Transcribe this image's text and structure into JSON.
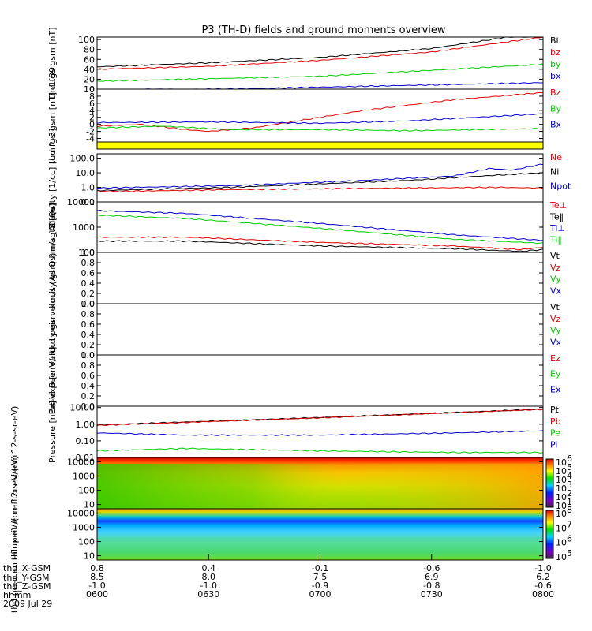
{
  "title": "P3 (TH-D) fields and ground moments overview",
  "date": "2009 Jul 29",
  "colors": {
    "black": "#000000",
    "red": "#e00000",
    "green": "#00cc00",
    "blue": "#0000cc",
    "yellow": "#ffff00"
  },
  "time_axis": {
    "rows": [
      {
        "label": "thd_X-GSM",
        "values": [
          "0.8",
          "0.4",
          "-0.1",
          "-0.6",
          "-1.0"
        ]
      },
      {
        "label": "thd_Y-GSM",
        "values": [
          "8.5",
          "8.0",
          "7.5",
          "6.9",
          "6.2"
        ]
      },
      {
        "label": "thd_Z-GSM",
        "values": [
          "-1.0",
          "-1.0",
          "-0.9",
          "-0.8",
          "-0.6"
        ]
      },
      {
        "label": "hhmm",
        "values": [
          "0600",
          "0630",
          "0700",
          "0730",
          "0800"
        ]
      }
    ]
  },
  "chart_data": [
    {
      "type": "line",
      "ylabel": "thd fgs gsm [nT]",
      "ylim": [
        0,
        105
      ],
      "yticks": [
        "0",
        "20",
        "40",
        "60",
        "80",
        "100"
      ],
      "ytick_values": [
        0,
        20,
        40,
        60,
        80,
        100
      ],
      "legend": [
        {
          "name": "Bt",
          "color": "black"
        },
        {
          "name": "bz",
          "color": "red"
        },
        {
          "name": "by",
          "color": "green"
        },
        {
          "name": "bx",
          "color": "blue"
        }
      ],
      "series": [
        {
          "name": "Bt",
          "color": "black",
          "x": [
            0,
            0.25,
            0.5,
            0.75,
            0.92,
            1
          ],
          "y": [
            45,
            53,
            64,
            82,
            105,
            105
          ]
        },
        {
          "name": "bz",
          "color": "red",
          "x": [
            0,
            0.25,
            0.5,
            0.75,
            1
          ],
          "y": [
            40,
            46,
            58,
            75,
            105
          ]
        },
        {
          "name": "by",
          "color": "green",
          "x": [
            0,
            0.5,
            1
          ],
          "y": [
            16,
            26,
            50
          ]
        },
        {
          "name": "bx",
          "color": "blue",
          "x": [
            0,
            0.3,
            0.5,
            1
          ],
          "y": [
            -1,
            0,
            4,
            13
          ]
        }
      ]
    },
    {
      "type": "line",
      "ylabel": "thd fgs gsm [nT] -1.89",
      "ylim": [
        -5,
        10
      ],
      "yticks": [
        "-4",
        "-2",
        "0",
        "2",
        "4",
        "6",
        "8",
        "10"
      ],
      "ytick_values": [
        -4,
        -2,
        0,
        2,
        4,
        6,
        8,
        10
      ],
      "legend": [
        {
          "name": "Bz",
          "color": "red"
        },
        {
          "name": "By",
          "color": "green"
        },
        {
          "name": "Bx",
          "color": "blue"
        }
      ],
      "series": [
        {
          "name": "Bz",
          "color": "red",
          "x": [
            0,
            0.1,
            0.2,
            0.25,
            0.35,
            0.45,
            0.6,
            0.8,
            1
          ],
          "y": [
            -0.5,
            0,
            -1.5,
            -2,
            -1,
            1,
            4,
            7,
            9
          ]
        },
        {
          "name": "By",
          "color": "green",
          "x": [
            0,
            0.15,
            0.3,
            0.5,
            0.7,
            0.85,
            1
          ],
          "y": [
            -1,
            -0.5,
            -1.5,
            -1.5,
            -1.8,
            -1.5,
            -1.2
          ]
        },
        {
          "name": "Bx",
          "color": "blue",
          "x": [
            0,
            0.25,
            0.5,
            0.7,
            0.85,
            1
          ],
          "y": [
            0.5,
            0.7,
            0.3,
            1,
            2,
            3
          ]
        }
      ]
    },
    {
      "type": "line",
      "scale": "log",
      "ylabel": "Density [1/cc] [cm^-3]",
      "ylim": [
        0.1,
        200
      ],
      "yticks": [
        "0.1",
        "1.0",
        "10.0",
        "100.0"
      ],
      "ytick_values": [
        0.1,
        1,
        10,
        100
      ],
      "legend": [
        {
          "name": "Ne",
          "color": "red"
        },
        {
          "name": "Ni",
          "color": "black"
        },
        {
          "name": "Npot",
          "color": "blue"
        }
      ],
      "series": [
        {
          "name": "Ne",
          "color": "red",
          "x": [
            0,
            0.3,
            0.7,
            0.9,
            1
          ],
          "y": [
            0.5,
            0.7,
            0.9,
            1.0,
            0.9
          ]
        },
        {
          "name": "Ni",
          "color": "black",
          "x": [
            0,
            0.3,
            0.7,
            0.9,
            1
          ],
          "y": [
            0.6,
            1.0,
            3,
            7,
            10
          ]
        },
        {
          "name": "Npot",
          "color": "blue",
          "x": [
            0,
            0.3,
            0.6,
            0.8,
            0.88,
            0.93,
            1
          ],
          "y": [
            0.9,
            1.3,
            3,
            6,
            20,
            15,
            40
          ]
        }
      ]
    },
    {
      "type": "line",
      "scale": "log",
      "ylabel": "magt3 [eV]",
      "ylim": [
        100,
        10000
      ],
      "yticks": [
        "100",
        "1000",
        "10000"
      ],
      "ytick_values": [
        100,
        1000,
        10000
      ],
      "legend": [
        {
          "name": "Te⊥",
          "color": "red"
        },
        {
          "name": "Te‖",
          "color": "black"
        },
        {
          "name": "Ti⊥",
          "color": "blue"
        },
        {
          "name": "Ti‖",
          "color": "green"
        }
      ],
      "series": [
        {
          "name": "Ti⊥",
          "color": "blue",
          "x": [
            0,
            0.2,
            0.5,
            0.8,
            1
          ],
          "y": [
            4500,
            3500,
            1400,
            500,
            300
          ]
        },
        {
          "name": "Ti‖",
          "color": "green",
          "x": [
            0,
            0.2,
            0.5,
            0.8,
            1
          ],
          "y": [
            3000,
            2200,
            900,
            330,
            230
          ]
        },
        {
          "name": "Te⊥",
          "color": "red",
          "x": [
            0,
            0.2,
            0.5,
            0.8,
            0.95,
            1
          ],
          "y": [
            400,
            400,
            250,
            180,
            130,
            160
          ]
        },
        {
          "name": "Te‖",
          "color": "black",
          "x": [
            0,
            0.2,
            0.5,
            0.8,
            0.95,
            1
          ],
          "y": [
            280,
            280,
            180,
            140,
            110,
            130
          ]
        }
      ]
    },
    {
      "type": "line",
      "ylabel": "thd peir velocity gsm km/s (All Qs)",
      "ylim": [
        0,
        1
      ],
      "yticks": [
        "0.0",
        "0.2",
        "0.4",
        "0.6",
        "0.8",
        "1.0"
      ],
      "ytick_values": [
        0,
        0.2,
        0.4,
        0.6,
        0.8,
        1
      ],
      "legend": [
        {
          "name": "Vt",
          "color": "black"
        },
        {
          "name": "Vz",
          "color": "red"
        },
        {
          "name": "Vy",
          "color": "green"
        },
        {
          "name": "Vx",
          "color": "blue"
        }
      ],
      "series": []
    },
    {
      "type": "line",
      "ylabel": "thd peer velocity gsm km/s (All Qs)",
      "ylim": [
        0,
        1
      ],
      "yticks": [
        "0.0",
        "0.2",
        "0.4",
        "0.6",
        "0.8",
        "1.0"
      ],
      "ytick_values": [
        0,
        0.2,
        0.4,
        0.6,
        0.8,
        1
      ],
      "legend": [
        {
          "name": "Vt",
          "color": "black"
        },
        {
          "name": "Vz",
          "color": "red"
        },
        {
          "name": "Vy",
          "color": "green"
        },
        {
          "name": "Vx",
          "color": "blue"
        }
      ],
      "series": []
    },
    {
      "type": "line",
      "ylabel": "E=-VxB [mV/m]",
      "ylim": [
        0,
        1
      ],
      "yticks": [
        "0.0",
        "0.2",
        "0.4",
        "0.6",
        "0.8",
        "1.0"
      ],
      "ytick_values": [
        0,
        0.2,
        0.4,
        0.6,
        0.8,
        1
      ],
      "legend": [
        {
          "name": "Ez",
          "color": "red"
        },
        {
          "name": "Ey",
          "color": "green"
        },
        {
          "name": "Ex",
          "color": "blue"
        }
      ],
      "series": []
    },
    {
      "type": "line",
      "scale": "log",
      "ylabel": "Pressure [nPa]",
      "ylim": [
        0.01,
        12
      ],
      "yticks": [
        "0.01",
        "0.10",
        "1.00",
        "10.00"
      ],
      "ytick_values": [
        0.01,
        0.1,
        1,
        10
      ],
      "legend": [
        {
          "name": "Pt",
          "color": "black"
        },
        {
          "name": "Pb",
          "color": "red"
        },
        {
          "name": "Pe",
          "color": "green"
        },
        {
          "name": "Pi",
          "color": "blue"
        }
      ],
      "series": [
        {
          "name": "Pt",
          "color": "black",
          "x": [
            0,
            0.5,
            1
          ],
          "y": [
            0.9,
            2.5,
            8
          ]
        },
        {
          "name": "Pb",
          "color": "red",
          "x": [
            0,
            0.5,
            1
          ],
          "y": [
            0.85,
            2.4,
            7.8
          ]
        },
        {
          "name": "Pi",
          "color": "blue",
          "x": [
            0,
            0.2,
            0.5,
            0.8,
            1
          ],
          "y": [
            0.3,
            0.22,
            0.22,
            0.3,
            0.4
          ]
        },
        {
          "name": "Pe",
          "color": "green",
          "x": [
            0,
            0.2,
            0.5,
            0.8,
            1
          ],
          "y": [
            0.025,
            0.035,
            0.025,
            0.02,
            0.02
          ]
        }
      ]
    },
    {
      "type": "heatmap",
      "ylabel": "thd peir en eflux eV/(cm^2-s-sr-eV)",
      "scale": "log",
      "ylim": [
        5,
        20000
      ],
      "yticks": [
        "10",
        "100",
        "1000",
        "10000"
      ],
      "ytick_values": [
        10,
        100,
        1000,
        10000
      ],
      "colorbar": {
        "ticks": [
          "10^5",
          "10^4",
          "10^3",
          "10^2",
          "10^1"
        ],
        "range": [
          1,
          6
        ]
      },
      "colorbar_labels": [
        "10",
        "10",
        "10",
        "10",
        "10",
        "10"
      ],
      "colorbar_exps": [
        "6",
        "5",
        "4",
        "3",
        "2",
        "1"
      ]
    },
    {
      "type": "heatmap",
      "ylabel": "thd peer en eflux eV/(cm^2-s-sr-eV)",
      "scale": "log",
      "ylim": [
        5,
        20000
      ],
      "yticks": [
        "10",
        "100",
        "1000",
        "10000"
      ],
      "ytick_values": [
        10,
        100,
        1000,
        10000
      ],
      "colorbar_labels": [
        "10",
        "10",
        "10",
        "10"
      ],
      "colorbar_exps": [
        "8",
        "7",
        "6",
        "5"
      ]
    }
  ]
}
